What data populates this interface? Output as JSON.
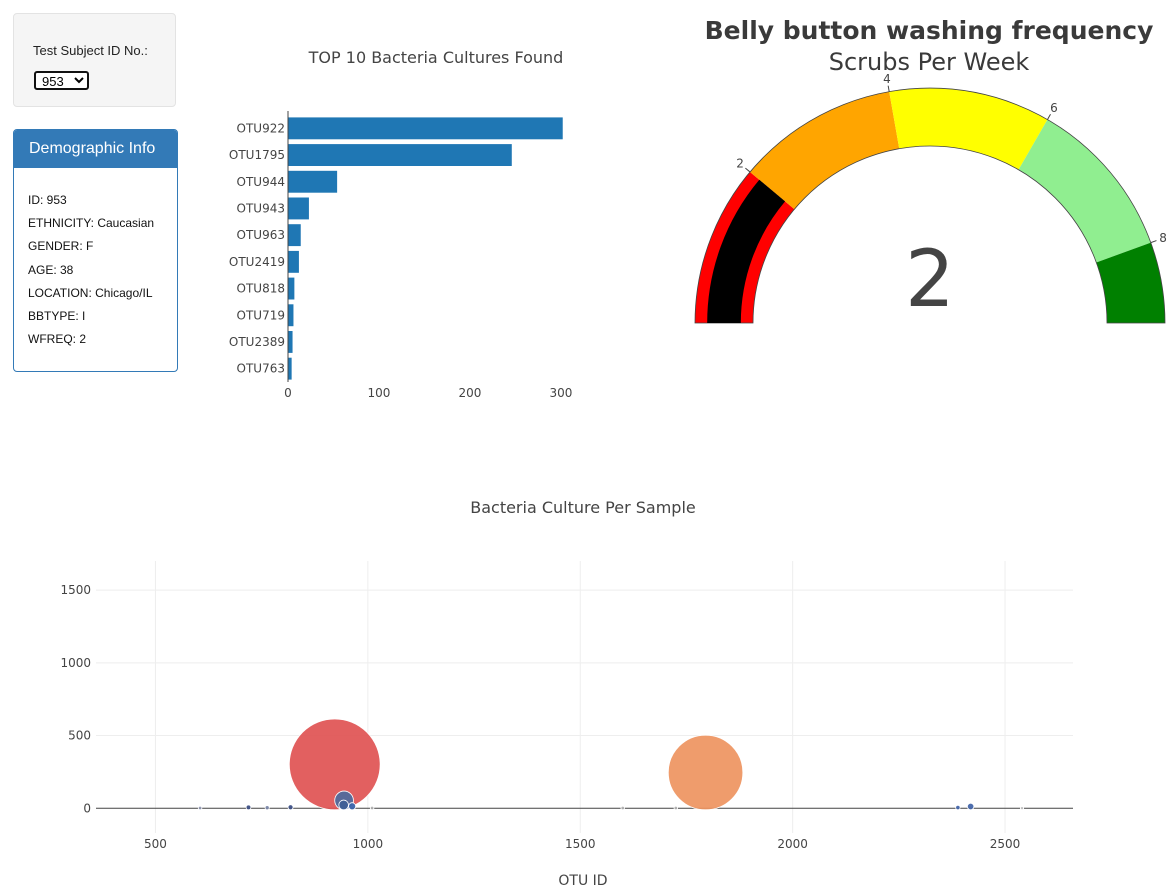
{
  "selector": {
    "label": "Test Subject ID No.:",
    "selected": "953"
  },
  "demographic": {
    "title": "Demographic Info",
    "rows": [
      "ID: 953",
      "ETHNICITY: Caucasian",
      "GENDER: F",
      "AGE: 38",
      "LOCATION: Chicago/IL",
      "BBTYPE: I",
      "WFREQ: 2"
    ]
  },
  "chart_data": [
    {
      "type": "bar",
      "orientation": "horizontal",
      "title": "TOP 10 Bacteria Cultures Found",
      "categories": [
        "OTU922",
        "OTU1795",
        "OTU944",
        "OTU943",
        "OTU963",
        "OTU2419",
        "OTU818",
        "OTU719",
        "OTU2389",
        "OTU763"
      ],
      "values": [
        302,
        246,
        54,
        23,
        14,
        12,
        7,
        6,
        5,
        4
      ],
      "xticks": [
        0,
        100,
        200,
        300
      ],
      "xlim": [
        0,
        310
      ],
      "color": "#1f77b4"
    },
    {
      "type": "gauge",
      "title": "Belly button washing frequency",
      "subtitle": "Scrubs Per Week",
      "value": 2,
      "range": [
        0,
        9
      ],
      "tick_labels": [
        "2",
        "4",
        "6",
        "8"
      ],
      "ticks": [
        2,
        4,
        6,
        8
      ],
      "bands": [
        {
          "from": 0,
          "to": 2,
          "color": "#ff0000"
        },
        {
          "from": 2,
          "to": 4,
          "color": "#ffa500"
        },
        {
          "from": 4,
          "to": 6,
          "color": "#ffff00"
        },
        {
          "from": 6,
          "to": 8,
          "color": "#90ee90"
        },
        {
          "from": 8,
          "to": 9,
          "color": "#008000"
        }
      ],
      "bar_color": "#000000"
    },
    {
      "type": "scatter",
      "title": "Bacteria Culture Per Sample",
      "xlabel": "OTU ID",
      "ylabel": "",
      "xlim": [
        360,
        2660
      ],
      "ylim": [
        -170,
        1700
      ],
      "xticks": [
        500,
        1000,
        1500,
        2000,
        2500
      ],
      "yticks": [
        0,
        500,
        1000,
        1500
      ],
      "grid": true,
      "points": [
        {
          "x": 922,
          "y": 302,
          "color": "#e05252",
          "opacity": 0.92
        },
        {
          "x": 1795,
          "y": 246,
          "color": "#ee9460",
          "opacity": 0.92
        },
        {
          "x": 944,
          "y": 54,
          "color": "#4a6ca0",
          "opacity": 0.9
        },
        {
          "x": 943,
          "y": 23,
          "color": "#3e5f96",
          "opacity": 0.9
        },
        {
          "x": 963,
          "y": 14,
          "color": "#3a63aa",
          "opacity": 0.95
        },
        {
          "x": 2419,
          "y": 12,
          "color": "#4466aa",
          "opacity": 0.95
        },
        {
          "x": 818,
          "y": 7,
          "color": "#3d4f85",
          "opacity": 0.95
        },
        {
          "x": 719,
          "y": 6,
          "color": "#3d4f85",
          "opacity": 0.95
        },
        {
          "x": 2389,
          "y": 5,
          "color": "#4466aa",
          "opacity": 0.95
        },
        {
          "x": 763,
          "y": 4,
          "color": "#7a86a8",
          "opacity": 0.95
        },
        {
          "x": 605,
          "y": 2,
          "color": "#8d95b0",
          "opacity": 0.9
        },
        {
          "x": 1600,
          "y": 2,
          "color": "#b0b0b0",
          "opacity": 0.9
        },
        {
          "x": 1725,
          "y": 2,
          "color": "#b0b0b0",
          "opacity": 0.9
        },
        {
          "x": 1010,
          "y": 2,
          "color": "#b0b0b0",
          "opacity": 0.9
        },
        {
          "x": 2540,
          "y": 1,
          "color": "#c8c8c8",
          "opacity": 0.9
        }
      ]
    }
  ]
}
